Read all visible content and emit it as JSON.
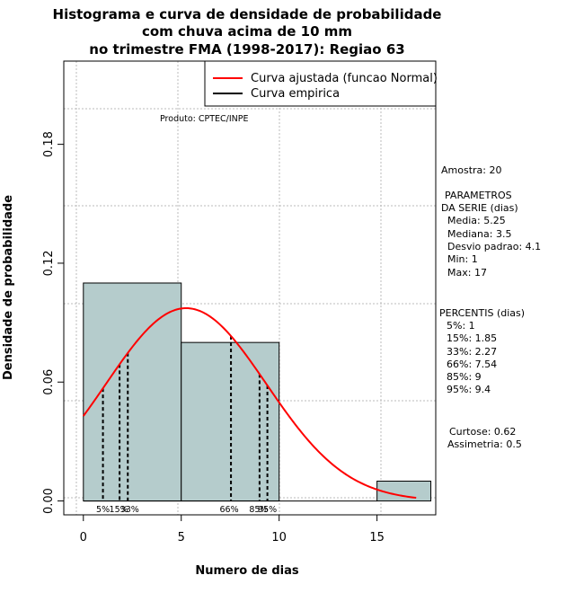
{
  "chart_data": {
    "type": "histogram",
    "title_lines": [
      "Histograma e curva de densidade de probabilidade",
      "com chuva acima de 10 mm",
      "no trimestre FMA (1998-2017): Regiao 63"
    ],
    "xlabel": "Numero de dias",
    "ylabel": "Densidade de probabilidade",
    "xlim": [
      -1,
      18
    ],
    "ylim": [
      -0.007,
      0.222
    ],
    "x_ticks": [
      0,
      5,
      10,
      15
    ],
    "y_ticks": [
      0.0,
      0.06,
      0.12,
      0.18
    ],
    "y_tick_labels": [
      "0.00",
      "0.06",
      "0.12",
      "0.18"
    ],
    "grid": true,
    "bins": [
      {
        "start": 0,
        "end": 5,
        "density": 0.11
      },
      {
        "start": 5,
        "end": 10,
        "density": 0.08
      },
      {
        "start": 10,
        "end": 15,
        "density": 0.0
      },
      {
        "start": 15,
        "end": 18,
        "density": 0.01
      }
    ],
    "series": [
      {
        "name": "Curva ajustada (funcao Normal)",
        "color": "#ff0000",
        "distribution": "normal",
        "mean": 5.25,
        "sd": 4.1,
        "x_range": [
          0,
          17
        ]
      },
      {
        "name": "Curva empirica",
        "color": "#000000"
      }
    ],
    "percentile_lines": [
      {
        "label": "5%",
        "x": 1
      },
      {
        "label": "15%",
        "x": 1.85
      },
      {
        "label": "33%",
        "x": 2.27
      },
      {
        "label": "66%",
        "x": 7.54
      },
      {
        "label": "85%",
        "x": 9
      },
      {
        "label": "95%",
        "x": 9.4
      }
    ],
    "legend": {
      "placement": "top-right",
      "entries": [
        "Curva ajustada (funcao Normal)",
        "Curva empirica"
      ]
    },
    "annotation": "Produto: CPTEC/INPE",
    "colors": {
      "bar_fill": "#b5cccc",
      "fit_line": "#ff0000",
      "empirical_line": "#000000",
      "grid": "#bbbbbb"
    }
  },
  "stats": {
    "sample": "Amostra: 20",
    "params_title_1": "PARAMETROS",
    "params_title_2": "DA SERIE (dias)",
    "media": "Media: 5.25",
    "mediana": "Mediana: 3.5",
    "desvio": "Desvio padrao: 4.1",
    "min": "Min: 1",
    "max": "Max: 17",
    "percentis_title": "PERCENTIS (dias)",
    "p5": "5%: 1",
    "p15": "15%: 1.85",
    "p33": "33%: 2.27",
    "p66": "66%: 7.54",
    "p85": "85%: 9",
    "p95": "95%: 9.4",
    "curtose": "Curtose: 0.62",
    "assimetria": "Assimetria: 0.5"
  }
}
